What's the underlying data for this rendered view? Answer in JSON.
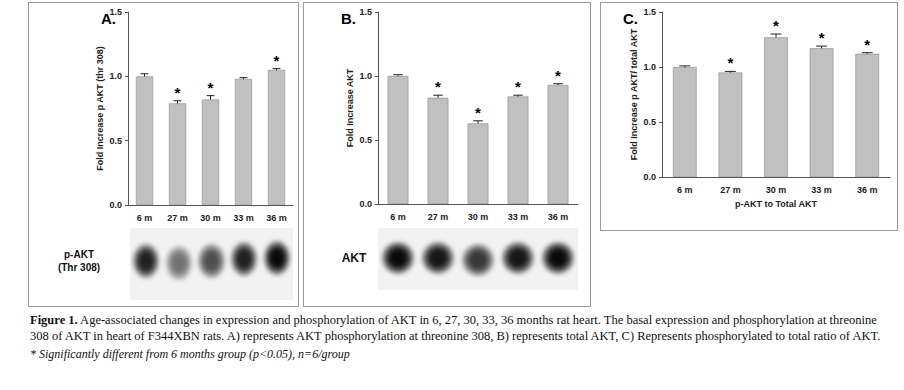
{
  "chart_data": [
    {
      "type": "bar",
      "title": "A.",
      "ylabel": "Fold Increase p AKT (thr 308)",
      "categories": [
        "6 m",
        "27 m",
        "30 m",
        "33 m",
        "36 m"
      ],
      "values": [
        1.0,
        0.79,
        0.82,
        0.98,
        1.05
      ],
      "errors": [
        0.02,
        0.02,
        0.03,
        0.01,
        0.01
      ],
      "color": "#c0c0c0",
      "ylim": [
        0,
        1.5
      ],
      "yticks": [
        {
          "value": 0,
          "label": "0.0"
        },
        {
          "value": 0.5,
          "label": "0.5"
        },
        {
          "value": 1,
          "label": "1.0"
        },
        {
          "value": 1.5,
          "label": "1.5"
        }
      ],
      "grid": false,
      "annotations": [
        {
          "x": "27 m",
          "text": "*"
        },
        {
          "x": "30 m",
          "text": "*"
        },
        {
          "x": "36 m",
          "text": "*"
        }
      ],
      "blot_label": [
        "p-AKT",
        "(Thr 308)"
      ]
    },
    {
      "type": "bar",
      "title": "B.",
      "ylabel": "Fold Increase AKT",
      "categories": [
        "6 m",
        "27 m",
        "30 m",
        "33 m",
        "36 m"
      ],
      "values": [
        1.0,
        0.83,
        0.63,
        0.84,
        0.93
      ],
      "errors": [
        0.01,
        0.02,
        0.02,
        0.01,
        0.01
      ],
      "color": "#c0c0c0",
      "ylim": [
        0,
        1.5
      ],
      "yticks": [
        {
          "value": 0,
          "label": "0.0"
        },
        {
          "value": 0.5,
          "label": "0.5"
        },
        {
          "value": 1,
          "label": "1.0"
        },
        {
          "value": 1.5,
          "label": "1.5"
        }
      ],
      "grid": false,
      "annotations": [
        {
          "x": "27 m",
          "text": "*"
        },
        {
          "x": "30 m",
          "text": "*"
        },
        {
          "x": "33 m",
          "text": "*"
        },
        {
          "x": "36 m",
          "text": "*"
        }
      ],
      "blot_label": [
        "AKT"
      ]
    },
    {
      "type": "bar",
      "title": "C.",
      "ylabel": "Fold Increase p AKT/ total AKT",
      "xlabel": "p-AKT to Total AKT",
      "categories": [
        "6 m",
        "27 m",
        "30 m",
        "33 m",
        "36 m"
      ],
      "values": [
        1.0,
        0.95,
        1.27,
        1.17,
        1.12
      ],
      "errors": [
        0.01,
        0.01,
        0.03,
        0.02,
        0.01
      ],
      "color": "#c0c0c0",
      "ylim": [
        0,
        1.5
      ],
      "yticks": [
        {
          "value": 0,
          "label": "0.0"
        },
        {
          "value": 0.5,
          "label": "0.5"
        },
        {
          "value": 1,
          "label": "1.0"
        },
        {
          "value": 1.5,
          "label": "1.5"
        }
      ],
      "grid": false,
      "annotations": [
        {
          "x": "27 m",
          "text": "*"
        },
        {
          "x": "30 m",
          "text": "*"
        },
        {
          "x": "33 m",
          "text": "*"
        },
        {
          "x": "36 m",
          "text": "*"
        }
      ]
    }
  ],
  "caption": {
    "label": "Figure 1.",
    "text": "Age-associated changes in expression and phosphorylation of AKT in 6, 27, 30, 33, 36 months rat heart. The basal expression and phosphorylation at threonine 308 of AKT in heart of F344XBN rats. A) represents AKT phosphorylation at threonine 308, B) represents total AKT, C) Represents phosphorylated to total ratio of AKT."
  },
  "footnote": "* Significantly different from 6 months group (p<0.05), n=6/group"
}
